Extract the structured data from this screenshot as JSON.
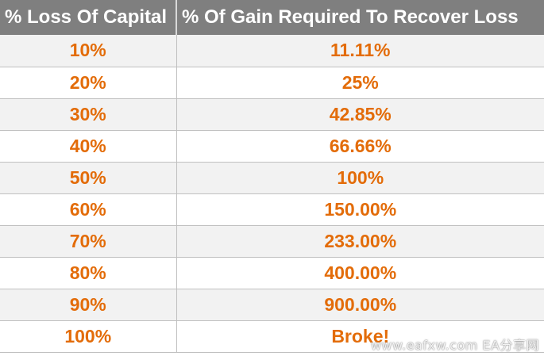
{
  "table": {
    "headers": [
      "% Loss Of Capital",
      "% Of Gain Required To Recover Loss"
    ],
    "rows": [
      [
        "10%",
        "11.11%"
      ],
      [
        "20%",
        "25%"
      ],
      [
        "30%",
        "42.85%"
      ],
      [
        "40%",
        "66.66%"
      ],
      [
        "50%",
        "100%"
      ],
      [
        "60%",
        "150.00%"
      ],
      [
        "70%",
        "233.00%"
      ],
      [
        "80%",
        "400.00%"
      ],
      [
        "90%",
        "900.00%"
      ],
      [
        "100%",
        "Broke!"
      ]
    ]
  },
  "watermark": "www.eafxw.com  EA分享网",
  "colors": {
    "header_bg": "#7f7f7f",
    "header_text": "#ffffff",
    "value_text": "#e36c09",
    "row_alt_bg": "#f2f2f2",
    "grid_line": "#c0c0c0"
  }
}
